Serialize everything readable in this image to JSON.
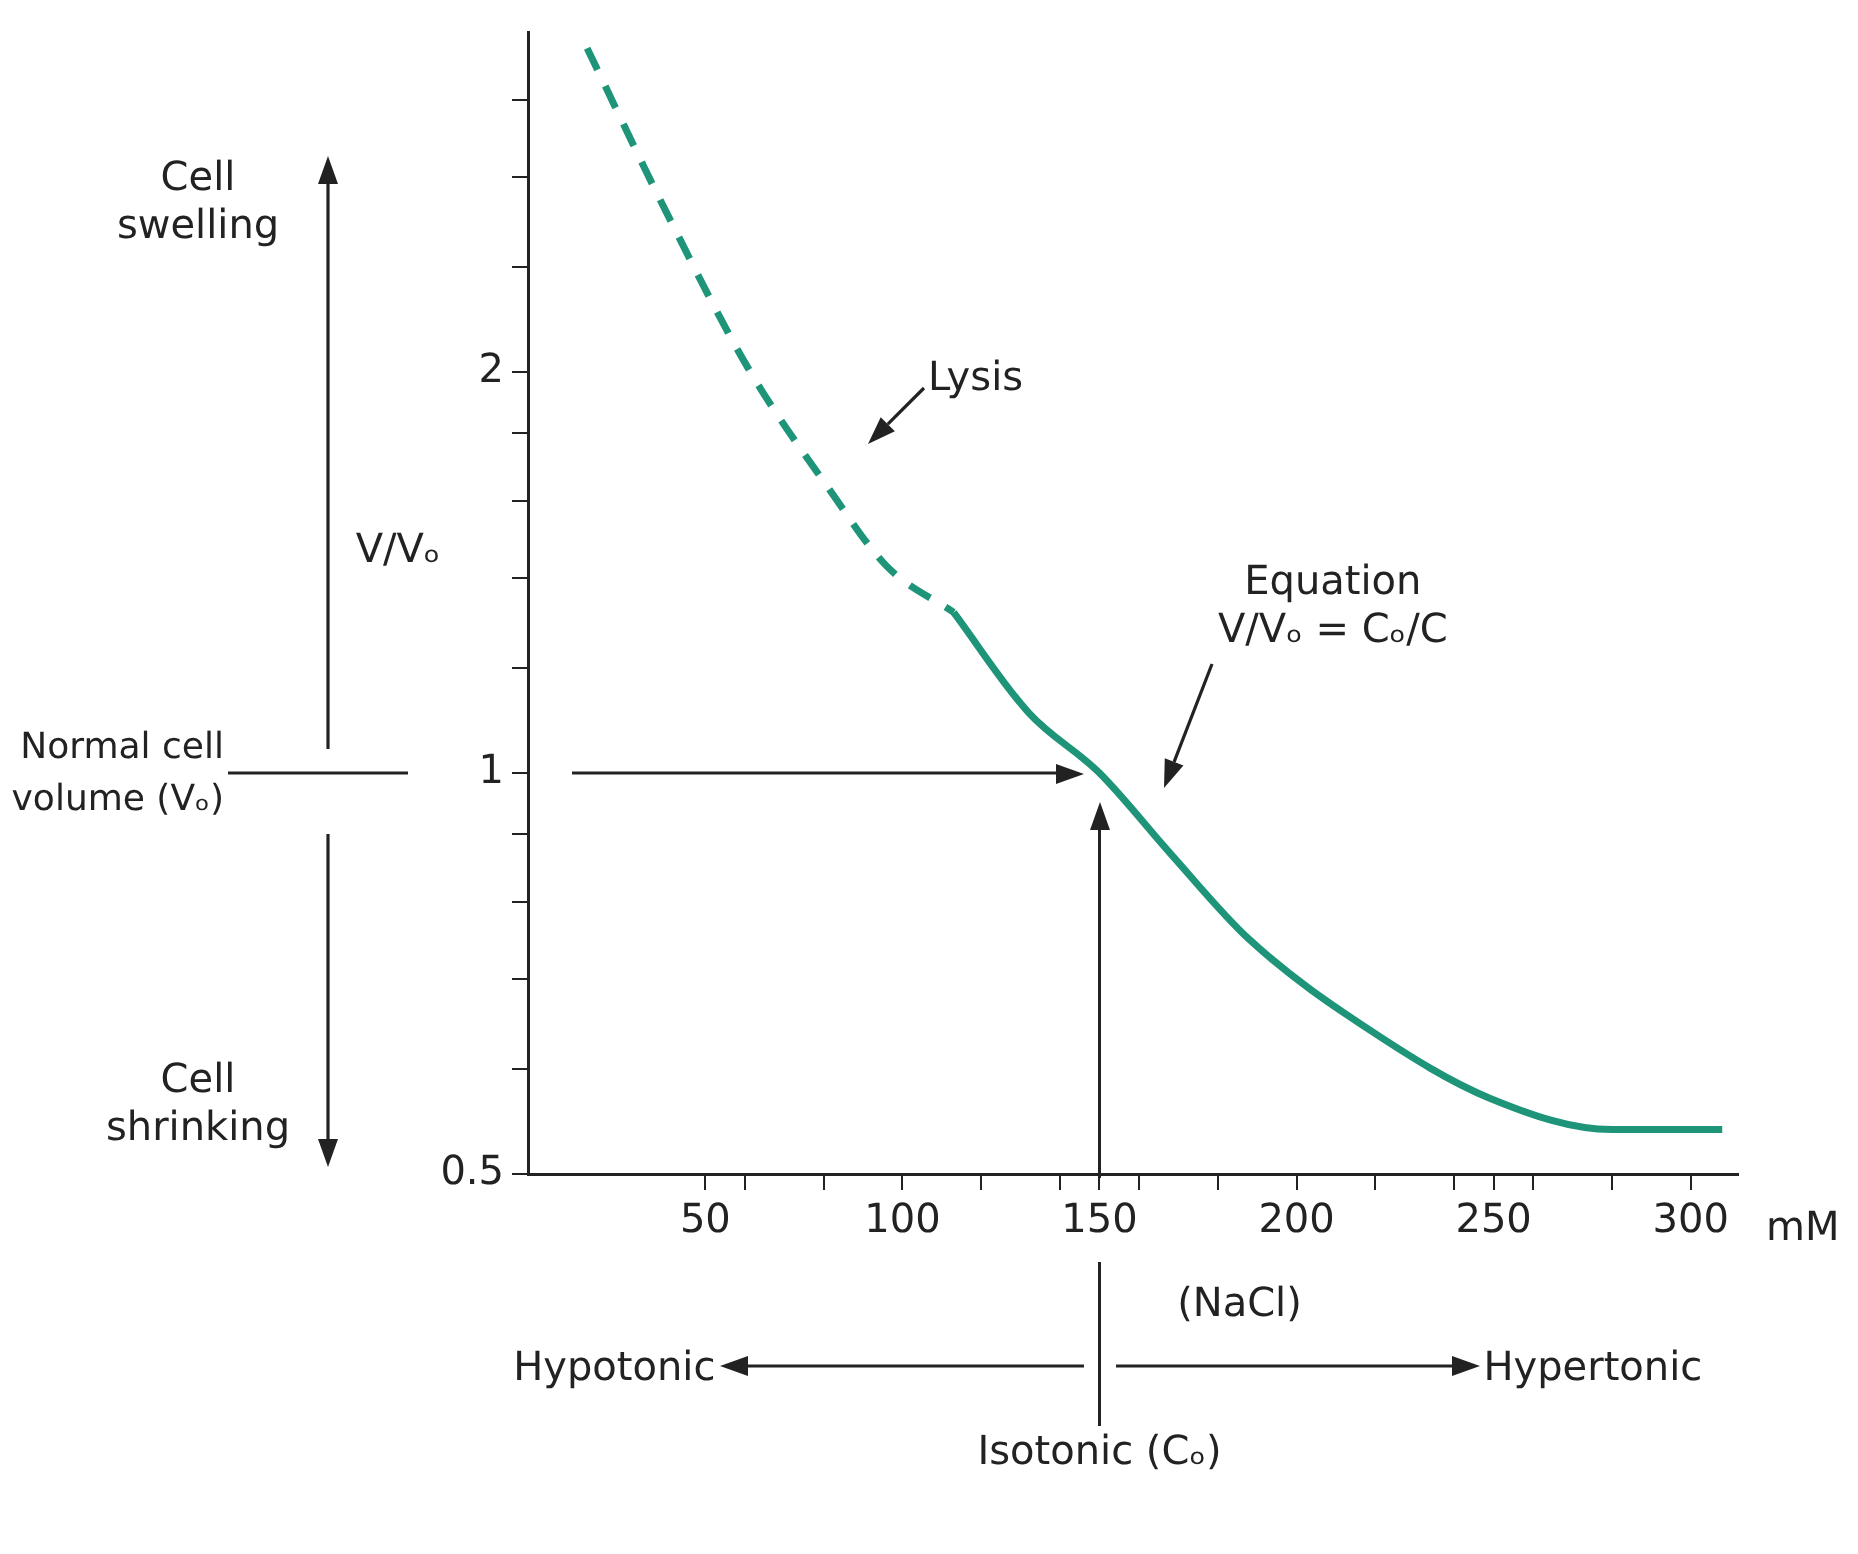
{
  "chart_data": {
    "type": "line",
    "xlabel": "(NaCl)",
    "ylabel": "V/Vₒ",
    "log": true,
    "marker": "none",
    "grid": false,
    "xlim": [
      5,
      312
    ],
    "xticks": [
      50,
      {
        "value": 60,
        "label": null
      },
      {
        "value": 80,
        "label": null
      },
      100,
      {
        "value": 120,
        "label": null
      },
      {
        "value": 140,
        "label": null
      },
      150,
      {
        "value": 160,
        "label": null
      },
      {
        "value": 180,
        "label": null
      },
      200,
      {
        "value": 220,
        "label": null
      },
      {
        "value": 240,
        "label": null
      },
      250,
      {
        "value": 260,
        "label": null
      },
      {
        "value": 280,
        "label": null
      },
      300
    ],
    "ylim": [
      0.5,
      3.6
    ],
    "yticks": [
      0.5,
      {
        "value": 0.6,
        "label": null
      },
      {
        "value": 0.7,
        "label": null
      },
      {
        "value": 0.8,
        "label": null
      },
      {
        "value": 0.9,
        "label": null
      },
      1,
      {
        "value": 1.2,
        "label": null
      },
      {
        "value": 1.4,
        "label": null
      },
      {
        "value": 1.6,
        "label": null
      },
      {
        "value": 1.8,
        "label": null
      },
      2,
      {
        "value": 2.4,
        "label": null
      },
      {
        "value": 2.8,
        "label": null
      },
      {
        "value": 3.2,
        "label": null
      }
    ],
    "series": [
      {
        "color": "#1e9478",
        "line_style": "dashed",
        "x": [
          20,
          40,
          61,
          81,
          96,
          113
        ],
        "values": [
          3.5,
          2.64,
          2.01,
          1.64,
          1.43,
          1.32
        ]
      },
      {
        "color": "#1e9478",
        "line_style": "solid",
        "x": [
          113,
          132,
          150,
          168,
          188,
          219,
          249,
          280,
          308
        ],
        "values": [
          1.32,
          1.11,
          1.0,
          0.87,
          0.75,
          0.64,
          0.57,
          0.54,
          0.54
        ]
      }
    ],
    "ref_lines": [
      {
        "axis": "y",
        "value": 1
      },
      {
        "axis": "x",
        "value": 150
      }
    ],
    "annotations": [
      "Lysis",
      "Equation\nV/Vₒ = Cₒ/C",
      "Cell swelling",
      "Cell shrinking",
      "Hypotonic",
      "Hypertonic",
      "mM",
      "Normal cell volume (Vₒ)",
      "Isotonic (Cₒ)"
    ]
  }
}
